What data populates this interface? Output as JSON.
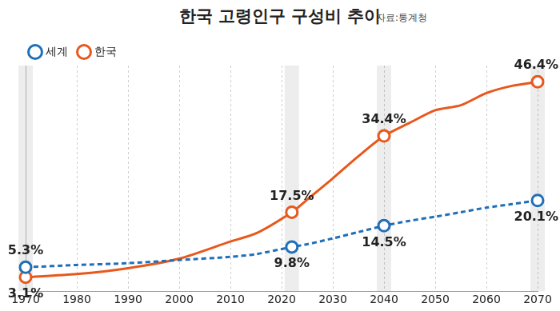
{
  "chart_data": {
    "type": "line",
    "title": "한국 고령인구 구성비 추이",
    "source": "자료:통계청",
    "x": [
      1970,
      1980,
      1990,
      2000,
      2010,
      2015,
      2022,
      2025,
      2030,
      2035,
      2040,
      2045,
      2050,
      2055,
      2060,
      2065,
      2070
    ],
    "series": [
      {
        "name": "세계",
        "color": "#1f6fb8",
        "line_style": "dashed",
        "marker": "circle",
        "values": [
          5.3,
          5.8,
          6.2,
          6.9,
          7.6,
          8.2,
          9.8,
          10.4,
          11.7,
          13.1,
          14.5,
          15.6,
          16.5,
          17.5,
          18.5,
          19.3,
          20.1
        ],
        "value_labels": [
          "5.3%",
          null,
          null,
          null,
          null,
          null,
          "9.8%",
          null,
          null,
          null,
          "14.5%",
          null,
          null,
          null,
          null,
          null,
          "20.1%"
        ]
      },
      {
        "name": "한국",
        "color": "#e8581c",
        "line_style": "solid",
        "marker": "circle",
        "values": [
          3.1,
          3.8,
          5.1,
          7.2,
          11.0,
          12.8,
          17.5,
          20.3,
          25.0,
          29.9,
          34.4,
          37.3,
          40.1,
          41.2,
          43.9,
          45.5,
          46.4
        ],
        "value_labels": [
          "3.1%",
          null,
          null,
          null,
          null,
          null,
          "17.5%",
          null,
          null,
          null,
          "34.4%",
          null,
          null,
          null,
          null,
          null,
          "46.4%"
        ]
      }
    ],
    "xlim": [
      1970,
      2070
    ],
    "xticks": [
      1970,
      1980,
      1990,
      2000,
      2010,
      2020,
      2030,
      2040,
      2050,
      2060,
      2070
    ],
    "ylim": [
      0,
      50
    ],
    "grid": true,
    "legend": "top-left",
    "data_labels": true,
    "tick_labels": "x"
  }
}
